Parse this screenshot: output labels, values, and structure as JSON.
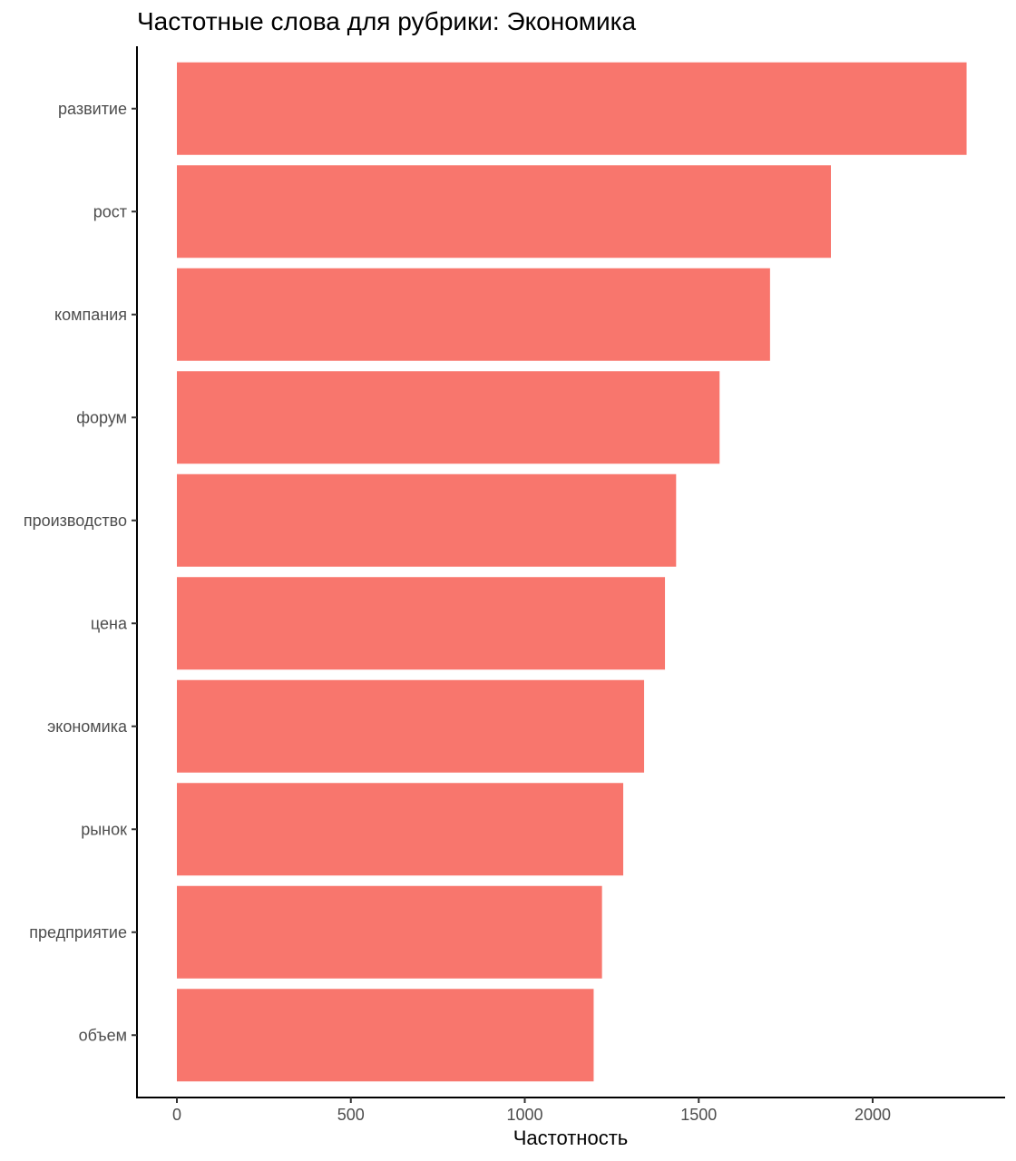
{
  "chart_data": {
    "type": "bar",
    "orientation": "horizontal",
    "title": "Частотные слова для рубрики: Экономика",
    "xlabel": "Частотность",
    "ylabel": "",
    "categories": [
      "развитие",
      "рост",
      "компания",
      "форум",
      "производство",
      "цена",
      "экономика",
      "рынок",
      "предприятие",
      "объем"
    ],
    "values": [
      2270,
      1880,
      1705,
      1560,
      1435,
      1403,
      1343,
      1283,
      1222,
      1198
    ],
    "xlim": [
      0,
      2270
    ],
    "xticks": [
      "0",
      "500",
      "1000",
      "1500",
      "2000"
    ],
    "grid": false,
    "legend": "none",
    "bar_color": "#F8766D"
  }
}
